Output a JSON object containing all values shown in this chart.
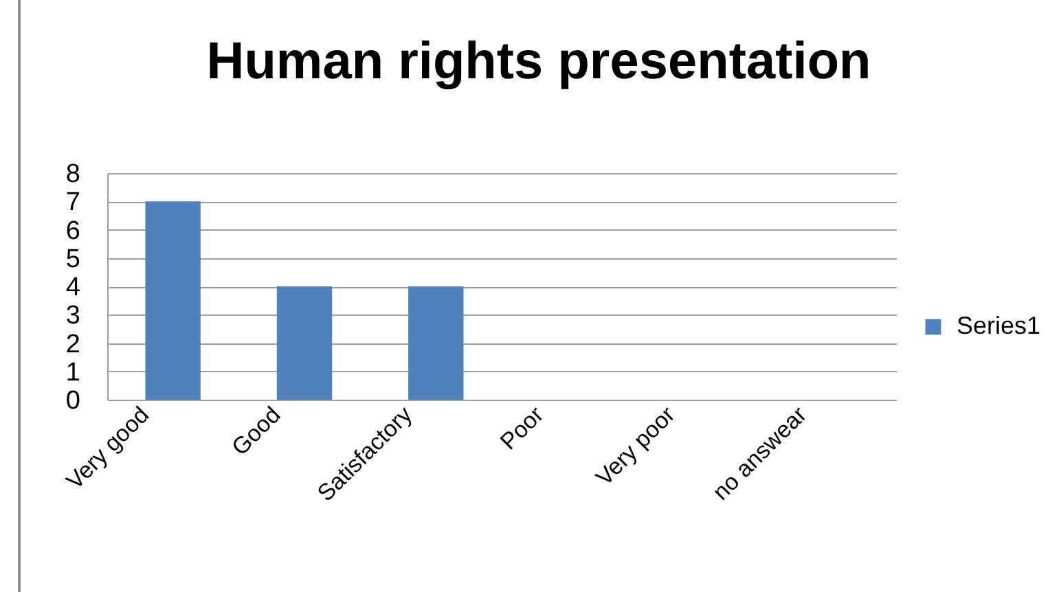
{
  "chart_data": {
    "type": "bar",
    "title": "Human rights presentation",
    "categories": [
      "Very good",
      "Good",
      "Satisfactory",
      "Poor",
      "Very poor",
      "no answear"
    ],
    "series": [
      {
        "name": "Series1",
        "color": "#4f81bd",
        "values": [
          7,
          4,
          4,
          0,
          0,
          0
        ]
      }
    ],
    "ylim": [
      0,
      8
    ],
    "yticks": [
      0,
      1,
      2,
      3,
      4,
      5,
      6,
      7,
      8
    ],
    "grid": "y",
    "legend": "right"
  }
}
